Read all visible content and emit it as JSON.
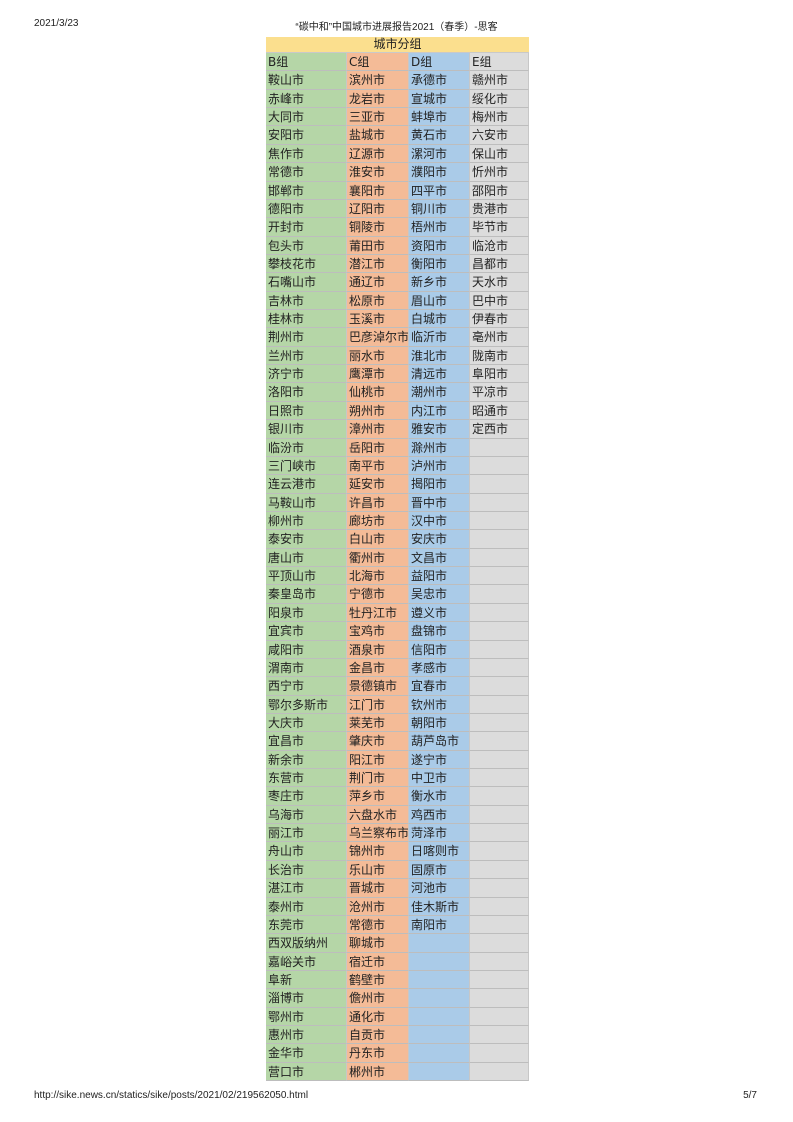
{
  "page_header": {
    "date": "2021/3/23",
    "title": "“碳中和”中国城市进展报告2021（春季）-思客"
  },
  "page_footer": {
    "url": "http://sike.news.cn/statics/sike/posts/2021/02/219562050.html",
    "page": "5/7"
  },
  "table": {
    "title": "城市分组",
    "columns": [
      "B组",
      "C组",
      "D组",
      "E组"
    ],
    "colors": {
      "title": "#fbdf8e",
      "B": "#b5d6a7",
      "C": "#f4bb97",
      "D": "#aacbe8",
      "E": "#dcdcdc"
    },
    "groups": {
      "B": [
        "鞍山市",
        "赤峰市",
        "大同市",
        "安阳市",
        "焦作市",
        "常德市",
        "邯郸市",
        "德阳市",
        "开封市",
        "包头市",
        "攀枝花市",
        "石嘴山市",
        "吉林市",
        "桂林市",
        "荆州市",
        "兰州市",
        "济宁市",
        "洛阳市",
        "日照市",
        "银川市",
        "临汾市",
        "三门峡市",
        "连云港市",
        "马鞍山市",
        "柳州市",
        "泰安市",
        "唐山市",
        "平顶山市",
        "秦皇岛市",
        "阳泉市",
        "宜宾市",
        "咸阳市",
        "渭南市",
        "西宁市",
        "鄂尔多斯市",
        "大庆市",
        "宜昌市",
        "新余市",
        "东营市",
        "枣庄市",
        "乌海市",
        "丽江市",
        "舟山市",
        "长治市",
        "湛江市",
        "泰州市",
        "东莞市",
        "西双版纳州",
        "嘉峪关市",
        "阜新",
        "淄博市",
        "鄂州市",
        "惠州市",
        "金华市",
        "营口市"
      ],
      "C": [
        "滨州市",
        "龙岩市",
        "三亚市",
        "盐城市",
        "辽源市",
        "淮安市",
        "襄阳市",
        "辽阳市",
        "铜陵市",
        "莆田市",
        "潜江市",
        "通辽市",
        "松原市",
        "玉溪市",
        "巴彦淖尔市",
        "丽水市",
        "鹰潭市",
        "仙桃市",
        "朔州市",
        "漳州市",
        "岳阳市",
        "南平市",
        "延安市",
        "许昌市",
        "廊坊市",
        "白山市",
        "衢州市",
        "北海市",
        "宁德市",
        "牡丹江市",
        "宝鸡市",
        "酒泉市",
        "金昌市",
        "景德镇市",
        "江门市",
        "莱芜市",
        "肇庆市",
        "阳江市",
        "荆门市",
        "萍乡市",
        "六盘水市",
        "乌兰察布市",
        "锦州市",
        "乐山市",
        "晋城市",
        "沧州市",
        "常德市",
        "聊城市",
        "宿迁市",
        "鹤壁市",
        "儋州市",
        "通化市",
        "自贡市",
        "丹东市",
        "郴州市"
      ],
      "D": [
        "承德市",
        "宣城市",
        "蚌埠市",
        "黄石市",
        "漯河市",
        "濮阳市",
        "四平市",
        "铜川市",
        "梧州市",
        "资阳市",
        "衡阳市",
        "新乡市",
        "眉山市",
        "白城市",
        "临沂市",
        "淮北市",
        "清远市",
        "潮州市",
        "内江市",
        "雅安市",
        "滁州市",
        "泸州市",
        "揭阳市",
        "晋中市",
        "汉中市",
        "安庆市",
        "文昌市",
        "益阳市",
        "吴忠市",
        "遵义市",
        "盘锦市",
        "信阳市",
        "孝感市",
        "宜春市",
        "钦州市",
        "朝阳市",
        "葫芦岛市",
        "遂宁市",
        "中卫市",
        "衡水市",
        "鸡西市",
        "菏泽市",
        "日喀则市",
        "固原市",
        "河池市",
        "佳木斯市",
        "南阳市"
      ],
      "E": [
        "赣州市",
        "绥化市",
        "梅州市",
        "六安市",
        "保山市",
        "忻州市",
        "邵阳市",
        "贵港市",
        "毕节市",
        "临沧市",
        "昌都市",
        "天水市",
        "巴中市",
        "伊春市",
        "亳州市",
        "陇南市",
        "阜阳市",
        "平凉市",
        "昭通市",
        "定西市"
      ]
    }
  }
}
